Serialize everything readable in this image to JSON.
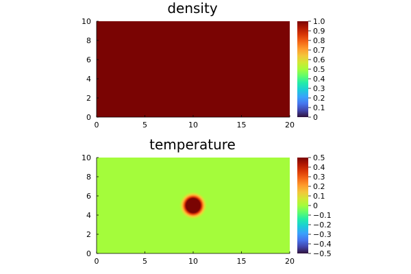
{
  "chart_data": [
    {
      "type": "heatmap",
      "title": "density",
      "xlim": [
        0,
        20
      ],
      "ylim": [
        0,
        10
      ],
      "x_ticks": [
        0,
        5,
        10,
        15,
        20
      ],
      "y_ticks": [
        0,
        2,
        4,
        6,
        8,
        10
      ],
      "x_tick_labels": [
        "0",
        "5",
        "10",
        "15",
        "20"
      ],
      "y_tick_labels": [
        "0",
        "2",
        "4",
        "6",
        "8",
        "10"
      ],
      "field": {
        "kind": "uniform",
        "value": 1.0
      },
      "colorbar": {
        "range": [
          0,
          1
        ],
        "ticks": [
          0,
          0.1,
          0.2,
          0.3,
          0.4,
          0.5,
          0.6,
          0.7,
          0.8,
          0.9,
          1.0
        ],
        "tick_labels": [
          "0",
          "0.1",
          "0.2",
          "0.3",
          "0.4",
          "0.5",
          "0.6",
          "0.7",
          "0.8",
          "0.9",
          "1.0"
        ]
      },
      "colormap": "turbo"
    },
    {
      "type": "heatmap",
      "title": "temperature",
      "xlim": [
        0,
        20
      ],
      "ylim": [
        0,
        10
      ],
      "x_ticks": [
        0,
        5,
        10,
        15,
        20
      ],
      "y_ticks": [
        0,
        2,
        4,
        6,
        8,
        10
      ],
      "x_tick_labels": [
        "0",
        "5",
        "10",
        "15",
        "20"
      ],
      "y_tick_labels": [
        "0",
        "2",
        "4",
        "6",
        "8",
        "10"
      ],
      "field": {
        "kind": "blob",
        "background": 0.0,
        "peak": 0.5,
        "center": [
          10,
          5
        ],
        "core_radius": 0.75,
        "outer_radius": 1.45
      },
      "colorbar": {
        "range": [
          -0.5,
          0.5
        ],
        "ticks": [
          -0.5,
          -0.4,
          -0.3,
          -0.2,
          -0.1,
          0,
          0.1,
          0.2,
          0.3,
          0.4,
          0.5
        ],
        "tick_labels": [
          "−0.5",
          "−0.4",
          "−0.3",
          "−0.2",
          "−0.1",
          "0",
          "0.1",
          "0.2",
          "0.3",
          "0.4",
          "0.5"
        ]
      },
      "colormap": "turbo"
    }
  ]
}
